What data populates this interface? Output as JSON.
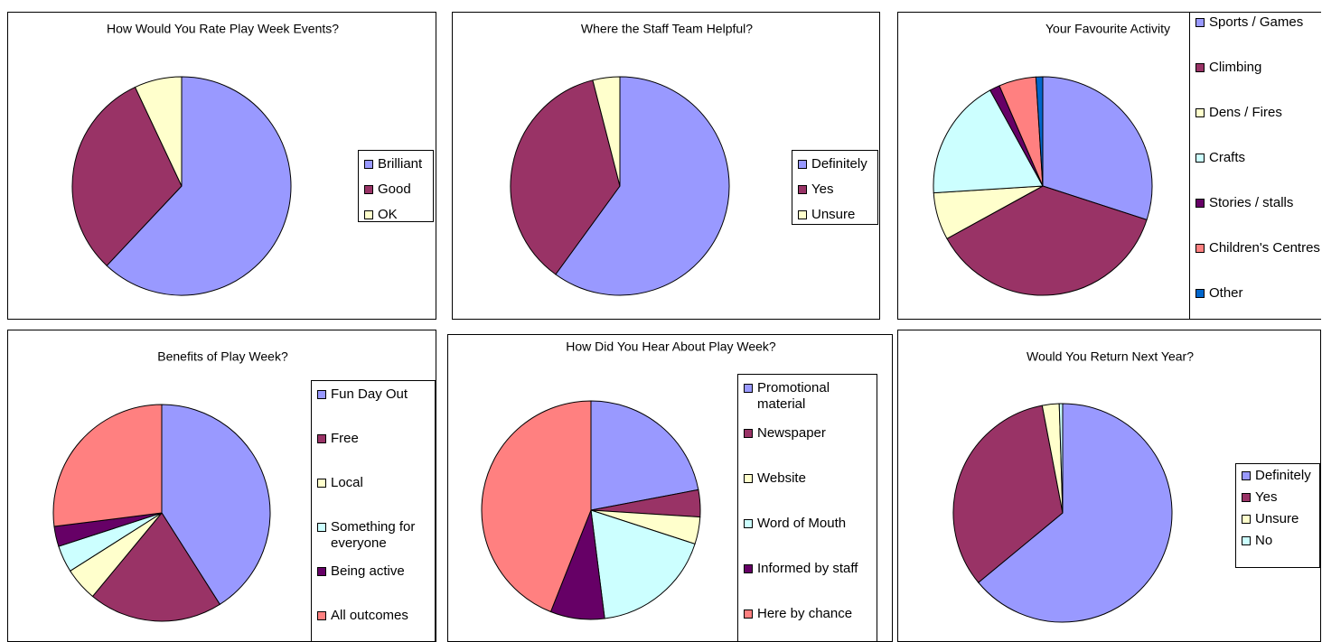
{
  "chart_data": [
    {
      "type": "pie",
      "title": "How Would You Rate Play Week Events?",
      "categories": [
        "Brilliant",
        "Good",
        "OK"
      ],
      "values": [
        62,
        31,
        7
      ],
      "colors": [
        "#9999ff",
        "#993366",
        "#ffffcc"
      ]
    },
    {
      "type": "pie",
      "title": "Where the Staff Team Helpful?",
      "categories": [
        "Definitely",
        "Yes",
        "Unsure"
      ],
      "values": [
        60,
        36,
        4
      ],
      "colors": [
        "#9999ff",
        "#993366",
        "#ffffcc"
      ]
    },
    {
      "type": "pie",
      "title": "Your Favourite Activity",
      "categories": [
        "Sports / Games",
        "Climbing",
        "Dens / Fires",
        "Crafts",
        "Stories / stalls",
        "Children's Centres",
        "Other"
      ],
      "values": [
        30,
        37,
        7,
        18,
        1.5,
        5.5,
        1
      ],
      "colors": [
        "#9999ff",
        "#993366",
        "#ffffcc",
        "#ccffff",
        "#660066",
        "#ff8080",
        "#0066cc"
      ]
    },
    {
      "type": "pie",
      "title": "Benefits of Play Week?",
      "categories": [
        "Fun Day Out",
        "Free",
        "Local",
        "Something for everyone",
        "Being active",
        "All outcomes"
      ],
      "values": [
        41,
        20,
        5,
        4,
        3,
        27
      ],
      "colors": [
        "#9999ff",
        "#993366",
        "#ffffcc",
        "#ccffff",
        "#660066",
        "#ff8080"
      ]
    },
    {
      "type": "pie",
      "title": "How Did You Hear About Play Week?",
      "categories": [
        "Promotional material",
        "Newspaper",
        "Website",
        "Word of Mouth",
        "Informed by staff",
        "Here by chance"
      ],
      "values": [
        22,
        4,
        4,
        18,
        8,
        44
      ],
      "colors": [
        "#9999ff",
        "#993366",
        "#ffffcc",
        "#ccffff",
        "#660066",
        "#ff8080"
      ]
    },
    {
      "type": "pie",
      "title": "Would You Return Next Year?",
      "categories": [
        "Definitely",
        "Yes",
        "Unsure",
        "No"
      ],
      "values": [
        64,
        33,
        2.5,
        0.5
      ],
      "colors": [
        "#9999ff",
        "#993366",
        "#ffffcc",
        "#ccffff"
      ]
    }
  ]
}
